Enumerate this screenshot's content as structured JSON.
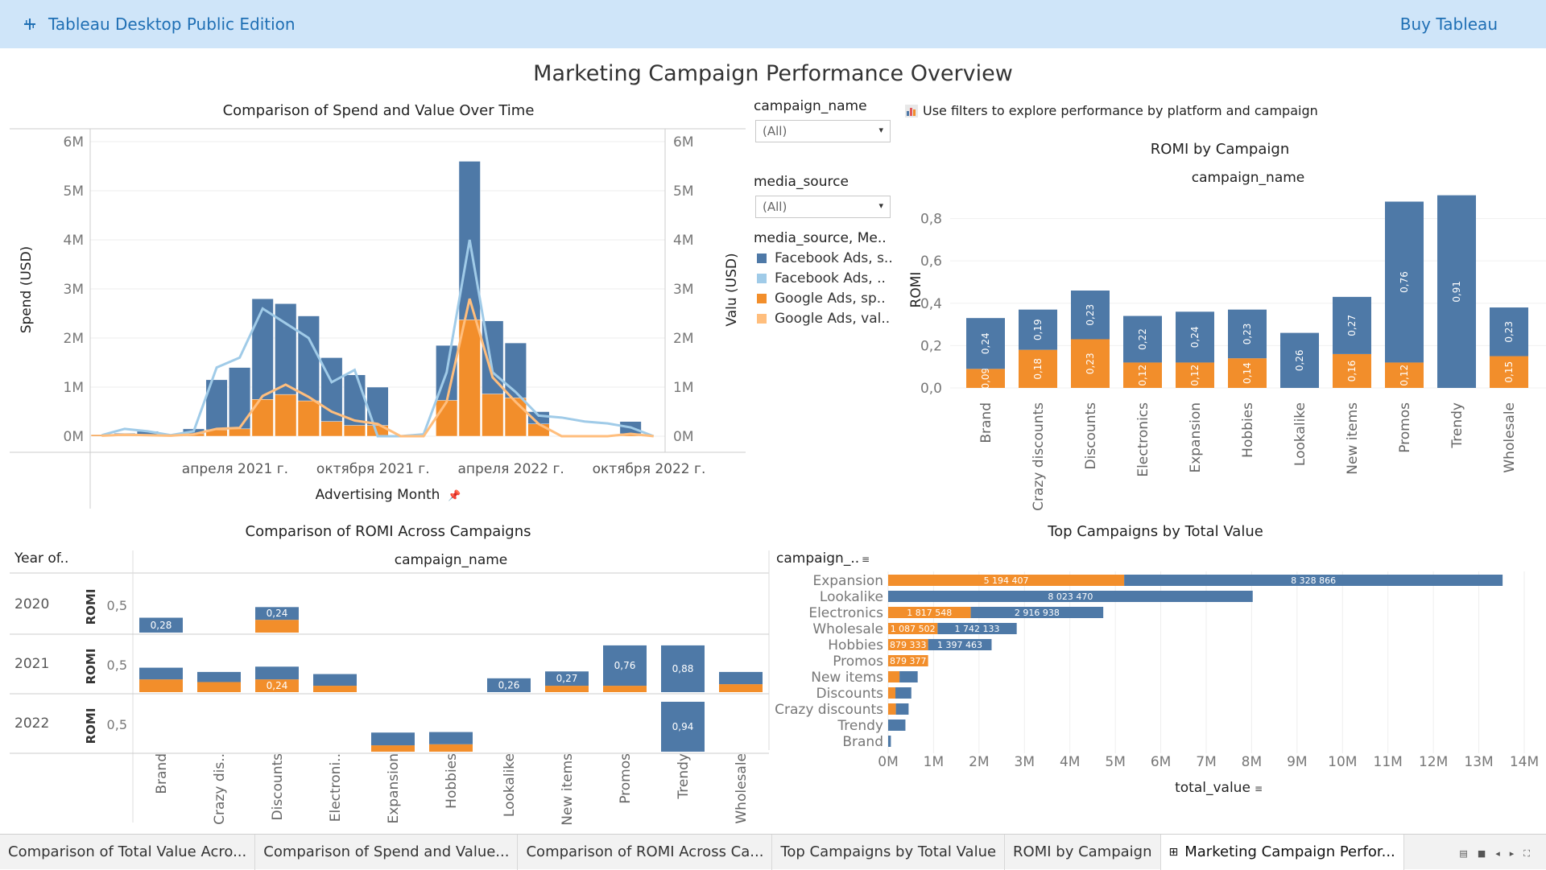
{
  "app": {
    "title": "Tableau Desktop Public Edition",
    "buy_label": "Buy Tableau"
  },
  "dashboard": {
    "title": "Marketing Campaign Performance Overview",
    "info_note": "Use filters to explore performance by platform and campaign"
  },
  "filters": {
    "campaign_label": "campaign_name",
    "campaign_value": "(All)",
    "source_label": "media_source",
    "source_value": "(All)",
    "legend_title": "media_source, Me..",
    "legend": [
      {
        "label": "Facebook Ads, s..",
        "color": "#4e79a7"
      },
      {
        "label": "Facebook Ads, ..",
        "color": "#a0cbe8"
      },
      {
        "label": "Google Ads, sp..",
        "color": "#f28e2b"
      },
      {
        "label": "Google Ads, val..",
        "color": "#ffbe7d"
      }
    ]
  },
  "colors": {
    "blue": "#4e79a7",
    "light_blue": "#a0cbe8",
    "orange": "#f28e2b",
    "light_orange": "#ffbe7d"
  },
  "chart_data": [
    {
      "id": "spend_value",
      "type": "bar",
      "title": "Comparison of Spend and Value Over Time",
      "xlabel": "Advertising Month",
      "ylabel": "Spend (USD)",
      "y2label": "Valu (USD)",
      "ylim": [
        0,
        6000000
      ],
      "yticks": [
        "0M",
        "1M",
        "2M",
        "3M",
        "4M",
        "5M",
        "6M"
      ],
      "y2ticks": [
        "0M",
        "1M",
        "2M",
        "3M",
        "4M",
        "5M",
        "6M"
      ],
      "xtick_labels": [
        "апреля 2021 г.",
        "октября 2021 г.",
        "апреля 2022 г.",
        "октября 2022 г."
      ],
      "months": [
        "2020-10",
        "2020-11",
        "2020-12",
        "2021-01",
        "2021-02",
        "2021-03",
        "2021-04",
        "2021-05",
        "2021-06",
        "2021-07",
        "2021-08",
        "2021-09",
        "2021-10",
        "2021-11",
        "2021-12",
        "2022-01",
        "2022-02",
        "2022-03",
        "2022-04",
        "2022-05",
        "2022-06",
        "2022-07",
        "2022-08",
        "2022-09",
        "2022-10"
      ],
      "series": [
        {
          "name": "Facebook Ads, s..",
          "values": [
            0,
            60000,
            100000,
            0,
            150000,
            1150000,
            1400000,
            2800000,
            2700000,
            2450000,
            1600000,
            1250000,
            1000000,
            0,
            0,
            1850000,
            5600000,
            2350000,
            1900000,
            500000,
            0,
            0,
            0,
            300000,
            0
          ]
        },
        {
          "name": "Google Ads, sp..",
          "values": [
            30000,
            40000,
            30000,
            30000,
            50000,
            130000,
            150000,
            750000,
            850000,
            720000,
            300000,
            220000,
            220000,
            0,
            0,
            730000,
            2370000,
            860000,
            780000,
            250000,
            0,
            0,
            0,
            50000,
            0
          ]
        },
        {
          "name": "Facebook Ads, ..",
          "values": [
            20000,
            150000,
            100000,
            20000,
            100000,
            1400000,
            1600000,
            2600000,
            2300000,
            2000000,
            1100000,
            1350000,
            0,
            0,
            40000,
            1300000,
            4000000,
            1300000,
            900000,
            420000,
            380000,
            300000,
            260000,
            180000,
            0
          ]
        },
        {
          "name": "Google Ads, val..",
          "values": [
            10000,
            30000,
            20000,
            10000,
            40000,
            150000,
            170000,
            820000,
            1050000,
            800000,
            500000,
            320000,
            250000,
            0,
            0,
            700000,
            2800000,
            1200000,
            700000,
            250000,
            0,
            0,
            0,
            50000,
            0
          ]
        }
      ]
    },
    {
      "id": "romi_by_campaign",
      "type": "bar",
      "title": "ROMI by Campaign",
      "xlabel": "campaign_name",
      "ylabel": "ROMI",
      "ylim": [
        0,
        0.9
      ],
      "yticks": [
        "0,0",
        "0,2",
        "0,4",
        "0,6",
        "0,8"
      ],
      "categories": [
        "Brand",
        "Crazy discounts",
        "Discounts",
        "Electronics",
        "Expansion",
        "Hobbies",
        "Lookalike",
        "New items",
        "Promos",
        "Trendy",
        "Wholesale"
      ],
      "series": [
        {
          "name": "Google Ads",
          "values": [
            0.09,
            0.18,
            0.23,
            0.12,
            0.12,
            0.14,
            0,
            0.16,
            0.12,
            0,
            0.15
          ],
          "labels": [
            "0,09",
            "0,18",
            "0,23",
            "0,12",
            "0,12",
            "0,14",
            "",
            "0,16",
            "0,12",
            "",
            "0,15"
          ]
        },
        {
          "name": "Facebook Ads",
          "values": [
            0.24,
            0.19,
            0.23,
            0.22,
            0.24,
            0.23,
            0.26,
            0.27,
            0.76,
            0.91,
            0.23
          ],
          "labels": [
            "0,24",
            "0,19",
            "0,23",
            "0,22",
            "0,24",
            "0,23",
            "0,26",
            "0,27",
            "0,76",
            "0,91",
            "0,23"
          ]
        }
      ]
    },
    {
      "id": "romi_across",
      "type": "bar",
      "title": "Comparison of ROMI Across Campaigns",
      "row_header": "Year of..",
      "xlabel": "campaign_name",
      "ylabel": "ROMI",
      "ytick": "0,5",
      "categories": [
        "Brand",
        "Crazy dis..",
        "Discounts",
        "Electroni..",
        "Expansion",
        "Hobbies",
        "Lookalike",
        "New items",
        "Promos",
        "Trendy",
        "Wholesale"
      ],
      "rows": [
        {
          "year": "2020",
          "google": [
            0,
            0,
            0.24,
            0,
            0,
            0,
            0,
            0,
            0,
            0,
            0
          ],
          "facebook": [
            0.28,
            0,
            0.24,
            0,
            0,
            0,
            0,
            0,
            0,
            0,
            0
          ],
          "labels": [
            "0,28",
            "",
            "0,24",
            "",
            "",
            "",
            "",
            "",
            "",
            "",
            ""
          ],
          "glabels": [
            "",
            "",
            "",
            "",
            "",
            "",
            "",
            "",
            "",
            "",
            ""
          ]
        },
        {
          "year": "2021",
          "google": [
            0.24,
            0.19,
            0.24,
            0.12,
            0,
            0,
            0,
            0.12,
            0.12,
            0,
            0.15
          ],
          "facebook": [
            0.22,
            0.19,
            0.24,
            0.22,
            0,
            0,
            0.26,
            0.27,
            0.76,
            0.88,
            0.23
          ],
          "labels": [
            "",
            "",
            "",
            "",
            "",
            "",
            "0,26",
            "0,27",
            "0,76",
            "0,88",
            ""
          ],
          "glabels": [
            "",
            "",
            "0,24",
            "",
            "",
            "",
            "",
            "",
            "",
            "",
            ""
          ]
        },
        {
          "year": "2022",
          "google": [
            0,
            0,
            0,
            0,
            0.12,
            0.14,
            0,
            0,
            0,
            0,
            0
          ],
          "facebook": [
            0,
            0,
            0,
            0,
            0.24,
            0.23,
            0,
            0,
            0,
            0.94,
            0
          ],
          "labels": [
            "",
            "",
            "",
            "",
            "",
            "",
            "",
            "",
            "",
            "0,94",
            ""
          ],
          "glabels": [
            "",
            "",
            "",
            "",
            "",
            "",
            "",
            "",
            "",
            "",
            ""
          ]
        }
      ]
    },
    {
      "id": "top_campaigns",
      "type": "bar",
      "title": "Top Campaigns by Total Value",
      "ylabel": "campaign_..",
      "xlabel": "total_value",
      "xlim": [
        0,
        14000000
      ],
      "xticks": [
        "0M",
        "1M",
        "2M",
        "3M",
        "4M",
        "5M",
        "6M",
        "7M",
        "8M",
        "9M",
        "10M",
        "11M",
        "12M",
        "13M",
        "14M"
      ],
      "categories": [
        "Expansion",
        "Lookalike",
        "Electronics",
        "Wholesale",
        "Hobbies",
        "Promos",
        "New items",
        "Discounts",
        "Crazy discounts",
        "Trendy",
        "Brand"
      ],
      "series": [
        {
          "name": "Google Ads",
          "values": [
            5194407,
            0,
            1817548,
            1087502,
            879333,
            879377,
            250000,
            160000,
            170000,
            0,
            0
          ],
          "labels": [
            "5 194 407",
            "",
            "1 817 548",
            "1 087 502",
            "879 333",
            "879 377",
            "",
            "",
            "",
            "",
            ""
          ]
        },
        {
          "name": "Facebook Ads",
          "values": [
            8328866,
            8023470,
            2916938,
            1742133,
            1397463,
            0,
            400000,
            350000,
            280000,
            380000,
            60000
          ],
          "labels": [
            "8 328 866",
            "8 023 470",
            "2 916 938",
            "1 742 133",
            "1 397 463",
            "",
            "",
            "",
            "",
            "",
            ""
          ]
        }
      ]
    }
  ],
  "tabs": [
    {
      "label": "Comparison of Total Value Acro..."
    },
    {
      "label": "Comparison of Spend and Value..."
    },
    {
      "label": "Comparison of ROMI Across Ca..."
    },
    {
      "label": "Top Campaigns by Total Value"
    },
    {
      "label": "ROMI by Campaign"
    },
    {
      "label": "Marketing Campaign Perfor...",
      "active": true
    }
  ]
}
